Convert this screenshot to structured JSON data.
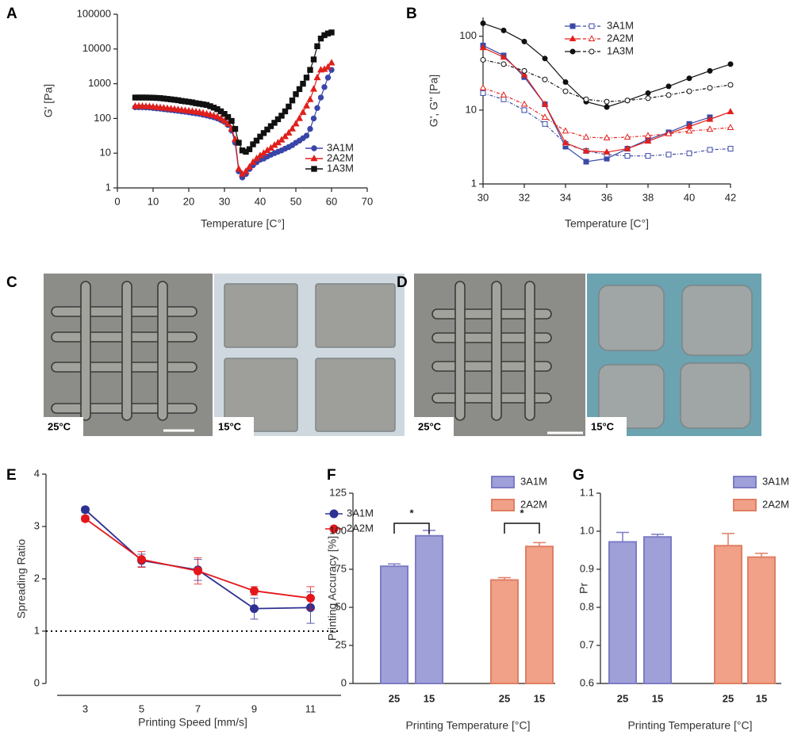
{
  "chart_data": [
    {
      "type": "line",
      "label": "A",
      "ylabel": "G' [Pa]",
      "xlabel": "Temperature [C°]",
      "ylog": true,
      "xlim": [
        0,
        70
      ],
      "xticks": [
        0,
        10,
        20,
        30,
        40,
        50,
        60,
        70
      ],
      "ylim": [
        1,
        100000
      ],
      "yticks": [
        1,
        10,
        100,
        1000,
        10000,
        100000
      ],
      "x": [
        5,
        6,
        7,
        8,
        9,
        10,
        11,
        12,
        13,
        14,
        15,
        16,
        17,
        18,
        19,
        20,
        21,
        22,
        23,
        24,
        25,
        26,
        27,
        28,
        29,
        30,
        31,
        32,
        33,
        34,
        35,
        36,
        37,
        38,
        39,
        40,
        41,
        42,
        43,
        44,
        45,
        46,
        47,
        48,
        49,
        50,
        51,
        52,
        53,
        54,
        55,
        56,
        57,
        58,
        59,
        60
      ],
      "series": [
        {
          "name": "3A1M",
          "color": "#3a45a8",
          "marker": "circle",
          "values": [
            210,
            210,
            210,
            208,
            205,
            200,
            195,
            190,
            185,
            180,
            175,
            170,
            165,
            160,
            155,
            150,
            145,
            140,
            135,
            128,
            122,
            115,
            108,
            100,
            90,
            80,
            65,
            45,
            20,
            3,
            2,
            2.5,
            3.5,
            4.5,
            5.5,
            6.5,
            7,
            8,
            9,
            10,
            11,
            12,
            13.5,
            15,
            17,
            20,
            23,
            27,
            32,
            50,
            100,
            200,
            400,
            800,
            1500,
            2500
          ]
        },
        {
          "name": "2A2M",
          "color": "#e0201b",
          "marker": "triangle",
          "values": [
            225,
            225,
            225,
            222,
            220,
            215,
            210,
            205,
            200,
            195,
            190,
            185,
            180,
            175,
            170,
            165,
            160,
            155,
            150,
            143,
            135,
            128,
            120,
            112,
            100,
            85,
            70,
            50,
            25,
            3.5,
            2.5,
            3,
            4,
            5.5,
            7,
            8.5,
            10,
            12,
            14,
            17,
            20,
            24,
            30,
            38,
            50,
            70,
            100,
            150,
            230,
            350,
            700,
            1500,
            2500,
            2600,
            3000,
            4000
          ]
        },
        {
          "name": "1A3M",
          "color": "#111111",
          "marker": "square",
          "values": [
            400,
            400,
            400,
            400,
            398,
            395,
            390,
            385,
            375,
            365,
            355,
            345,
            335,
            320,
            310,
            300,
            290,
            275,
            265,
            255,
            245,
            225,
            205,
            185,
            160,
            135,
            110,
            85,
            50,
            20,
            12,
            11,
            13,
            18,
            23,
            30,
            38,
            48,
            60,
            75,
            95,
            120,
            160,
            220,
            330,
            500,
            700,
            1000,
            1500,
            2500,
            5000,
            12000,
            20000,
            25000,
            28000,
            30000
          ]
        }
      ]
    },
    {
      "type": "line",
      "label": "B",
      "ylabel": "G', G'' [Pa]",
      "xlabel": "Temperature [C°]",
      "ylog": true,
      "xlim": [
        30,
        42
      ],
      "xticks": [
        30,
        32,
        34,
        36,
        38,
        40,
        42
      ],
      "ylim": [
        1,
        180
      ],
      "yticks": [
        1,
        10,
        100
      ],
      "x": [
        30,
        31,
        32,
        33,
        34,
        35,
        36,
        37,
        38,
        39,
        40,
        41,
        42
      ],
      "series": [
        {
          "name": "3A1M",
          "color": "#3a4aa6",
          "marker": "square",
          "storage": [
            75,
            55,
            28,
            12,
            3.2,
            2,
            2.2,
            3,
            4,
            5,
            6.5,
            8,
            null
          ],
          "loss": [
            17,
            14,
            10,
            6.5,
            3.5,
            2.8,
            2.5,
            2.4,
            2.4,
            2.5,
            2.6,
            2.9,
            3.0
          ]
        },
        {
          "name": "2A2M",
          "color": "#e3201c",
          "marker": "triangle",
          "storage": [
            70,
            52,
            30,
            12,
            3.6,
            2.8,
            2.7,
            3,
            3.8,
            4.8,
            6,
            7.5,
            9.5
          ],
          "loss": [
            20,
            16,
            12,
            8,
            5.2,
            4.3,
            4.2,
            4.3,
            4.5,
            4.8,
            5.2,
            5.5,
            5.8
          ]
        },
        {
          "name": "1A3M",
          "color": "#111111",
          "marker": "circle",
          "storage": [
            150,
            120,
            85,
            50,
            24,
            13,
            11,
            13.5,
            17,
            21,
            27,
            34,
            42
          ],
          "loss": [
            48,
            42,
            34,
            26,
            18,
            14,
            13,
            13.5,
            14.5,
            16,
            18,
            20,
            22
          ]
        }
      ]
    },
    {
      "type": "line",
      "label": "E",
      "ylabel": "Spreading Ratio",
      "xlabel": "Printing Speed [mm/s]",
      "categories": [
        "3",
        "5",
        "7",
        "9",
        "11"
      ],
      "ylim": [
        0,
        4
      ],
      "yticks": [
        0,
        1,
        2,
        3,
        4
      ],
      "reference_line": 1,
      "series": [
        {
          "name": "3A1M",
          "color": "#2e3192",
          "marker": "circle",
          "values": [
            3.32,
            2.35,
            2.17,
            1.43,
            1.45
          ],
          "errors": [
            0.05,
            0.12,
            0.2,
            0.2,
            0.3
          ]
        },
        {
          "name": "2A2M",
          "color": "#e4161b",
          "marker": "circle",
          "values": [
            3.15,
            2.37,
            2.15,
            1.77,
            1.63
          ],
          "errors": [
            0.05,
            0.15,
            0.25,
            0.08,
            0.22
          ]
        }
      ]
    },
    {
      "type": "bar",
      "label": "F",
      "ylabel": "Printing Accuracy [%]",
      "xlabel": "Printing Temperature [°C]",
      "ylim": [
        0,
        125
      ],
      "yticks": [
        0,
        25,
        50,
        75,
        100,
        125
      ],
      "significance": [
        "*",
        "*"
      ],
      "series": [
        {
          "name": "3A1M",
          "color": "#a0a0d9",
          "edge_color": "#7c7cc5",
          "categories": [
            "25",
            "15"
          ],
          "values": [
            77,
            97
          ],
          "errors": [
            1.5,
            3.5
          ]
        },
        {
          "name": "2A2M",
          "color": "#f0a187",
          "edge_color": "#e07f64",
          "categories": [
            "25",
            "15"
          ],
          "values": [
            68,
            90
          ],
          "errors": [
            1.5,
            2.5
          ]
        }
      ]
    },
    {
      "type": "bar",
      "label": "G",
      "ylabel": "Pr",
      "xlabel": "Printing Temperature [°C]",
      "ylim": [
        0.6,
        1.1
      ],
      "yticks": [
        0.6,
        0.7,
        0.8,
        0.9,
        {
          "value": 1,
          "label": "1.0"
        },
        1.1
      ],
      "series": [
        {
          "name": "3A1M",
          "color": "#a0a0d9",
          "edge_color": "#7c7cc5",
          "categories": [
            "25",
            "15"
          ],
          "values": [
            0.972,
            0.985
          ],
          "errors": [
            0.025,
            0.007
          ]
        },
        {
          "name": "2A2M",
          "color": "#f0a187",
          "edge_color": "#e07f64",
          "categories": [
            "25",
            "15"
          ],
          "values": [
            0.962,
            0.932
          ],
          "errors": [
            0.032,
            0.01
          ]
        }
      ]
    }
  ],
  "images": [
    {
      "label": "C",
      "captions": [
        "25°C",
        "15°C"
      ]
    },
    {
      "label": "D",
      "captions": [
        "25°C",
        "15°C"
      ]
    }
  ]
}
